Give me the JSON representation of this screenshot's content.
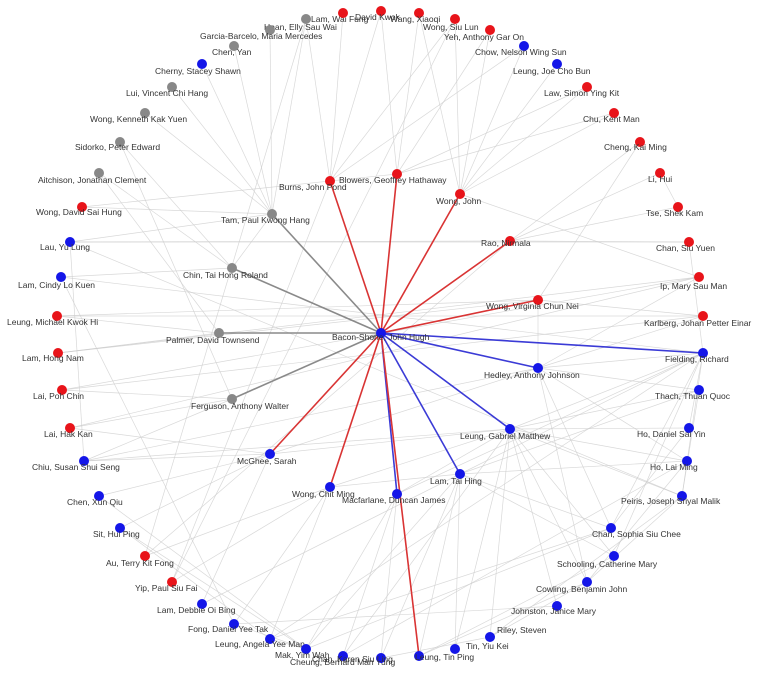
{
  "center": "Bacon-Shone, John Hugh",
  "colors": {
    "red": "#e8141a",
    "blue": "#1416e8",
    "gray": "#888888",
    "edge_red": "#d93434",
    "edge_blue": "#3b3bd6",
    "edge_gray": "#8a8a8a",
    "edge_bg": "#cccccc"
  },
  "nodes": [
    {
      "name": "Bacon-Shone, John Hugh",
      "color": "blue"
    },
    {
      "name": "Blowers, Geoffrey Hathaway",
      "color": "red"
    },
    {
      "name": "Burns, John Pond",
      "color": "red"
    },
    {
      "name": "Wong, John",
      "color": "red"
    },
    {
      "name": "Rao, Nirmala",
      "color": "red"
    },
    {
      "name": "Wong, Virginia Chun Nei",
      "color": "red"
    },
    {
      "name": "Tam, Paul Kwong Hang",
      "color": "gray"
    },
    {
      "name": "Chin, Tai Hong Roland",
      "color": "gray"
    },
    {
      "name": "Palmer, David Townsend",
      "color": "gray"
    },
    {
      "name": "Ferguson, Anthony Walter",
      "color": "gray"
    },
    {
      "name": "Hedley, Anthony Johnson",
      "color": "blue"
    },
    {
      "name": "Leung, Gabriel Matthew",
      "color": "blue"
    },
    {
      "name": "Lam, Tai Hing",
      "color": "blue"
    },
    {
      "name": "McGhee, Sarah",
      "color": "blue"
    },
    {
      "name": "Wong, Chit Ming",
      "color": "blue"
    },
    {
      "name": "Macfarlane, Duncan James",
      "color": "blue"
    },
    {
      "name": "Lam, Wai Fung",
      "color": "gray"
    },
    {
      "name": "Hoan, Elly Sau Wai",
      "color": "red"
    },
    {
      "name": "Garcia-Barcelo, Maria Mercedes",
      "color": "gray"
    },
    {
      "name": "Chen, Yan",
      "color": "gray"
    },
    {
      "name": "Cherny, Stacey Shawn",
      "color": "blue"
    },
    {
      "name": "Lui, Vincent Chi Hang",
      "color": "gray"
    },
    {
      "name": "Wong, Kenneth Kak Yuen",
      "color": "gray"
    },
    {
      "name": "Sidorko, Peter Edward",
      "color": "gray"
    },
    {
      "name": "Aitchison, Jonathan Clement",
      "color": "gray"
    },
    {
      "name": "Wong, David Sai Hung",
      "color": "red"
    },
    {
      "name": "Lau, Yu Lung",
      "color": "blue"
    },
    {
      "name": "Lam, Cindy Lo Kuen",
      "color": "blue"
    },
    {
      "name": "Leung, Michael Kwok Hi",
      "color": "red"
    },
    {
      "name": "Lam, Hong Nam",
      "color": "red"
    },
    {
      "name": "Lai, Poh Chin",
      "color": "red"
    },
    {
      "name": "Lai, Hak Kan",
      "color": "red"
    },
    {
      "name": "Chiu, Susan Shui Seng",
      "color": "blue"
    },
    {
      "name": "Chen, Xun Qiu",
      "color": "blue"
    },
    {
      "name": "Sit, Hui Ping",
      "color": "blue"
    },
    {
      "name": "Au, Terry Kit Fong",
      "color": "red"
    },
    {
      "name": "Yip, Paul Siu Fai",
      "color": "red"
    },
    {
      "name": "Lam, Debbie Oi Bing",
      "color": "blue"
    },
    {
      "name": "Fong, Daniel Yee Tak",
      "color": "blue"
    },
    {
      "name": "Leung, Angela Yee Man",
      "color": "blue"
    },
    {
      "name": "Mak, Yim Wah",
      "color": "blue"
    },
    {
      "name": "Cheung, Bernard Man Yung",
      "color": "blue"
    },
    {
      "name": "Chan, Karen Siu Ling",
      "color": "blue"
    },
    {
      "name": "Leung, Tin Ping",
      "color": "blue"
    },
    {
      "name": "Tin, Yiu Kei",
      "color": "blue"
    },
    {
      "name": "Riley, Steven",
      "color": "blue"
    },
    {
      "name": "Johnston, Janice Mary",
      "color": "blue"
    },
    {
      "name": "Cowling, Benjamin John",
      "color": "blue"
    },
    {
      "name": "Schooling, Catherine Mary",
      "color": "blue"
    },
    {
      "name": "Chan, Sophia Siu Chee",
      "color": "blue"
    },
    {
      "name": "Peiris, Joseph Sriyal Malik",
      "color": "blue"
    },
    {
      "name": "Ho, Lai Ming",
      "color": "blue"
    },
    {
      "name": "Ho, Daniel Sai Yin",
      "color": "blue"
    },
    {
      "name": "Thach, Thuan Quoc",
      "color": "blue"
    },
    {
      "name": "Fielding, Richard",
      "color": "blue"
    },
    {
      "name": "Karlberg, Johan Petter Einar",
      "color": "red"
    },
    {
      "name": "Ip, Mary Sau Man",
      "color": "red"
    },
    {
      "name": "Chan, Siu Yuen",
      "color": "red"
    },
    {
      "name": "Tse, Shek Kam",
      "color": "red"
    },
    {
      "name": "Li, Hui",
      "color": "red"
    },
    {
      "name": "Cheng, Kai Ming",
      "color": "red"
    },
    {
      "name": "Chu, Kent Man",
      "color": "red"
    },
    {
      "name": "Law, Simon Ying Kit",
      "color": "red"
    },
    {
      "name": "Leung, Joe Cho Bun",
      "color": "blue"
    },
    {
      "name": "Chow, Nelson Wing Sun",
      "color": "blue"
    },
    {
      "name": "Yeh, Anthony Gar On",
      "color": "red"
    },
    {
      "name": "Wong, Siu Lun",
      "color": "red"
    },
    {
      "name": "Wang, Xiaoqi",
      "color": "red"
    },
    {
      "name": "David Kwok",
      "color": "red"
    }
  ],
  "highlight_edges": [
    {
      "to": "Blowers, Geoffrey Hathaway",
      "color": "edge_red"
    },
    {
      "to": "Burns, John Pond",
      "color": "edge_red"
    },
    {
      "to": "Wong, John",
      "color": "edge_red"
    },
    {
      "to": "Rao, Nirmala",
      "color": "edge_red"
    },
    {
      "to": "Wong, Virginia Chun Nei",
      "color": "edge_red"
    },
    {
      "to": "Tam, Paul Kwong Hang",
      "color": "edge_gray"
    },
    {
      "to": "Chin, Tai Hong Roland",
      "color": "edge_gray"
    },
    {
      "to": "Palmer, David Townsend",
      "color": "edge_gray"
    },
    {
      "to": "Ferguson, Anthony Walter",
      "color": "edge_gray"
    },
    {
      "to": "Hedley, Anthony Johnson",
      "color": "edge_blue"
    },
    {
      "to": "Leung, Gabriel Matthew",
      "color": "edge_blue"
    },
    {
      "to": "Lam, Tai Hing",
      "color": "edge_blue"
    },
    {
      "to": "McGhee, Sarah",
      "color": "edge_red"
    },
    {
      "to": "Wong, Chit Ming",
      "color": "edge_red"
    },
    {
      "to": "Macfarlane, Duncan James",
      "color": "edge_blue"
    },
    {
      "to": "Fielding, Richard",
      "color": "edge_blue"
    },
    {
      "to": "Leung, Tin Ping",
      "color": "edge_red"
    }
  ],
  "background_edges": [
    [
      "Tam, Paul Kwong Hang",
      "Garcia-Barcelo, Maria Mercedes"
    ],
    [
      "Tam, Paul Kwong Hang",
      "Lui, Vincent Chi Hang"
    ],
    [
      "Tam, Paul Kwong Hang",
      "Wong, Kenneth Kak Yuen"
    ],
    [
      "Tam, Paul Kwong Hang",
      "Chen, Yan"
    ],
    [
      "Tam, Paul Kwong Hang",
      "Cherny, Stacey Shawn"
    ],
    [
      "Tam, Paul Kwong Hang",
      "Wong, David Sai Hung"
    ],
    [
      "Tam, Paul Kwong Hang",
      "Lau, Yu Lung"
    ],
    [
      "Tam, Paul Kwong Hang",
      "Lam, Wai Fung"
    ],
    [
      "Tam, Paul Kwong Hang",
      "Chin, Tai Hong Roland"
    ],
    [
      "Chin, Tai Hong Roland",
      "Sidorko, Peter Edward"
    ],
    [
      "Chin, Tai Hong Roland",
      "Aitchison, Jonathan Clement"
    ],
    [
      "Chin, Tai Hong Roland",
      "Lam, Cindy Lo Kuen"
    ],
    [
      "Palmer, David Townsend",
      "Leung, Michael Kwok Hi"
    ],
    [
      "Palmer, David Townsend",
      "Lam, Hong Nam"
    ],
    [
      "Palmer, David Townsend",
      "Aitchison, Jonathan Clement"
    ],
    [
      "Ferguson, Anthony Walter",
      "Sidorko, Peter Edward"
    ],
    [
      "Ferguson, Anthony Walter",
      "Lai, Poh Chin"
    ],
    [
      "Ferguson, Anthony Walter",
      "Lai, Hak Kan"
    ],
    [
      "Ferguson, Anthony Walter",
      "Chiu, Susan Shui Seng"
    ],
    [
      "McGhee, Sarah",
      "Chiu, Susan Shui Seng"
    ],
    [
      "McGhee, Sarah",
      "Chen, Xun Qiu"
    ],
    [
      "McGhee, Sarah",
      "Sit, Hui Ping"
    ],
    [
      "McGhee, Sarah",
      "Lai, Hak Kan"
    ],
    [
      "McGhee, Sarah",
      "Lam, Debbie Oi Bing"
    ],
    [
      "McGhee, Sarah",
      "Leung, Gabriel Matthew"
    ],
    [
      "McGhee, Sarah",
      "Hedley, Anthony Johnson"
    ],
    [
      "Wong, Chit Ming",
      "Au, Terry Kit Fong"
    ],
    [
      "Wong, Chit Ming",
      "Yip, Paul Siu Fai"
    ],
    [
      "Wong, Chit Ming",
      "Fong, Daniel Yee Tak"
    ],
    [
      "Wong, Chit Ming",
      "Leung, Angela Yee Man"
    ],
    [
      "Wong, Chit Ming",
      "Lam, Tai Hing"
    ],
    [
      "Wong, Chit Ming",
      "Leung, Gabriel Matthew"
    ],
    [
      "Macfarlane, Duncan James",
      "Mak, Yim Wah"
    ],
    [
      "Macfarlane, Duncan James",
      "Cheung, Bernard Man Yung"
    ],
    [
      "Macfarlane, Duncan James",
      "Chan, Karen Siu Ling"
    ],
    [
      "Macfarlane, Duncan James",
      "Leung, Gabriel Matthew"
    ],
    [
      "Macfarlane, Duncan James",
      "Fielding, Richard"
    ],
    [
      "Lam, Tai Hing",
      "Leung, Tin Ping"
    ],
    [
      "Lam, Tai Hing",
      "Tin, Yiu Kei"
    ],
    [
      "Lam, Tai Hing",
      "Chan, Sophia Siu Chee"
    ],
    [
      "Lam, Tai Hing",
      "Schooling, Catherine Mary"
    ],
    [
      "Lam, Tai Hing",
      "Ho, Lai Ming"
    ],
    [
      "Lam, Tai Hing",
      "Thach, Thuan Quoc"
    ],
    [
      "Lam, Tai Hing",
      "Mak, Yim Wah"
    ],
    [
      "Lam, Tai Hing",
      "Lam, Debbie Oi Bing"
    ],
    [
      "Lam, Tai Hing",
      "Chan, Karen Siu Ling"
    ],
    [
      "Lam, Tai Hing",
      "Fielding, Richard"
    ],
    [
      "Leung, Gabriel Matthew",
      "Riley, Steven"
    ],
    [
      "Leung, Gabriel Matthew",
      "Johnston, Janice Mary"
    ],
    [
      "Leung, Gabriel Matthew",
      "Cowling, Benjamin John"
    ],
    [
      "Leung, Gabriel Matthew",
      "Schooling, Catherine Mary"
    ],
    [
      "Leung, Gabriel Matthew",
      "Peiris, Joseph Sriyal Malik"
    ],
    [
      "Leung, Gabriel Matthew",
      "Ho, Daniel Sai Yin"
    ],
    [
      "Leung, Gabriel Matthew",
      "Thach, Thuan Quoc"
    ],
    [
      "Leung, Gabriel Matthew",
      "Fielding, Richard"
    ],
    [
      "Leung, Gabriel Matthew",
      "Ho, Lai Ming"
    ],
    [
      "Leung, Gabriel Matthew",
      "Cheung, Bernard Man Yung"
    ],
    [
      "Leung, Gabriel Matthew",
      "Tin, Yiu Kei"
    ],
    [
      "Leung, Gabriel Matthew",
      "Chiu, Susan Shui Seng"
    ],
    [
      "Hedley, Anthony Johnson",
      "Fielding, Richard"
    ],
    [
      "Hedley, Anthony Johnson",
      "Thach, Thuan Quoc"
    ],
    [
      "Hedley, Anthony Johnson",
      "Ho, Lai Ming"
    ],
    [
      "Hedley, Anthony Johnson",
      "Chan, Sophia Siu Chee"
    ],
    [
      "Hedley, Anthony Johnson",
      "Karlberg, Johan Petter Einar"
    ],
    [
      "Hedley, Anthony Johnson",
      "Ip, Mary Sau Man"
    ],
    [
      "Hedley, Anthony Johnson",
      "Wong, Virginia Chun Nei"
    ],
    [
      "Hedley, Anthony Johnson",
      "Chiu, Susan Shui Seng"
    ],
    [
      "Hedley, Anthony Johnson",
      "Cowling, Benjamin John"
    ],
    [
      "Fielding, Richard",
      "Peiris, Joseph Sriyal Malik"
    ],
    [
      "Fielding, Richard",
      "Ho, Daniel Sai Yin"
    ],
    [
      "Fielding, Richard",
      "Chan, Sophia Siu Chee"
    ],
    [
      "Fielding, Richard",
      "Schooling, Catherine Mary"
    ],
    [
      "Fielding, Richard",
      "Lam, Cindy Lo Kuen"
    ],
    [
      "Fielding, Richard",
      "Leung, Angela Yee Man"
    ],
    [
      "Fielding, Richard",
      "Chan, Siu Yuen"
    ],
    [
      "Thach, Thuan Quoc",
      "Peiris, Joseph Sriyal Malik"
    ],
    [
      "Ho, Daniel Sai Yin",
      "Chan, Sophia Siu Chee"
    ],
    [
      "Ho, Lai Ming",
      "Cowling, Benjamin John"
    ],
    [
      "Peiris, Joseph Sriyal Malik",
      "Riley, Steven"
    ],
    [
      "Peiris, Joseph Sriyal Malik",
      "Cowling, Benjamin John"
    ],
    [
      "Johnston, Janice Mary",
      "Fong, Daniel Yee Tak"
    ],
    [
      "Riley, Steven",
      "Cowling, Benjamin John"
    ],
    [
      "Schooling, Catherine Mary",
      "Leung, Tin Ping"
    ],
    [
      "Chan, Sophia Siu Chee",
      "Leung, Angela Yee Man"
    ],
    [
      "Chan, Sophia Siu Chee",
      "Mak, Yim Wah"
    ],
    [
      "Lam, Cindy Lo Kuen",
      "Fong, Daniel Yee Tak"
    ],
    [
      "Rao, Nirmala",
      "Lau, Yu Lung"
    ],
    [
      "Rao, Nirmala",
      "Chan, Siu Yuen"
    ],
    [
      "Rao, Nirmala",
      "Tse, Shek Kam"
    ],
    [
      "Rao, Nirmala",
      "Li, Hui"
    ],
    [
      "Rao, Nirmala",
      "Cheng, Kai Ming"
    ],
    [
      "Rao, Nirmala",
      "Au, Terry Kit Fong"
    ],
    [
      "Wong, John",
      "Chu, Kent Man"
    ],
    [
      "Wong, John",
      "Law, Simon Ying Kit"
    ],
    [
      "Wong, John",
      "Leung, Joe Cho Bun"
    ],
    [
      "Wong, John",
      "Chow, Nelson Wing Sun"
    ],
    [
      "Wong, John",
      "Yeh, Anthony Gar On"
    ],
    [
      "Wong, John",
      "Wong, Siu Lun"
    ],
    [
      "Wong, John",
      "Wang, Xiaoqi"
    ],
    [
      "Wong, John",
      "Ip, Mary Sau Man"
    ],
    [
      "Burns, John Pond",
      "Wong, Siu Lun"
    ],
    [
      "Burns, John Pond",
      "Hoan, Elly Sau Wai"
    ],
    [
      "Burns, John Pond",
      "Lam, Wai Fung"
    ],
    [
      "Burns, John Pond",
      "Chow, Nelson Wing Sun"
    ],
    [
      "Burns, John Pond",
      "David Kwok"
    ],
    [
      "Burns, John Pond",
      "Yip, Paul Siu Fai"
    ],
    [
      "Blowers, Geoffrey Hathaway",
      "Yeh, Anthony Gar On"
    ],
    [
      "Blowers, Geoffrey Hathaway",
      "Wang, Xiaoqi"
    ],
    [
      "Blowers, Geoffrey Hathaway",
      "David Kwok"
    ],
    [
      "Blowers, Geoffrey Hathaway",
      "Law, Simon Ying Kit"
    ],
    [
      "Blowers, Geoffrey Hathaway",
      "Chu, Kent Man"
    ],
    [
      "Blowers, Geoffrey Hathaway",
      "Wong, David Sai Hung"
    ],
    [
      "Wong, Virginia Chun Nei",
      "Leung, Michael Kwok Hi"
    ],
    [
      "Wong, Virginia Chun Nei",
      "Lam, Hong Nam"
    ],
    [
      "Wong, Virginia Chun Nei",
      "Karlberg, Johan Petter Einar"
    ],
    [
      "Wong, Virginia Chun Nei",
      "Cheng, Kai Ming"
    ],
    [
      "Karlberg, Johan Petter Einar",
      "Lai, Poh Chin"
    ],
    [
      "Karlberg, Johan Petter Einar",
      "Leung, Michael Kwok Hi"
    ],
    [
      "Ip, Mary Sau Man",
      "Lam, Hong Nam"
    ],
    [
      "Ip, Mary Sau Man",
      "Lai, Hak Kan"
    ],
    [
      "Chan, Siu Yuen",
      "Lau, Yu Lung"
    ],
    [
      "Tse, Shek Kam",
      "Li, Hui"
    ],
    [
      "Yip, Paul Siu Fai",
      "Wong, Siu Lun"
    ],
    [
      "Au, Terry Kit Fong",
      "Lam, Wai Fung"
    ],
    [
      "Lai, Poh Chin",
      "Ip, Mary Sau Man"
    ],
    [
      "Lau, Yu Lung",
      "Chiu, Susan Shui Seng"
    ],
    [
      "Lau, Yu Lung",
      "Peiris, Joseph Sriyal Malik"
    ],
    [
      "Chen, Xun Qiu",
      "Mak, Yim Wah"
    ],
    [
      "Sit, Hui Ping",
      "Mak, Yim Wah"
    ],
    [
      "Sit, Hui Ping",
      "Leung, Angela Yee Man"
    ],
    [
      "Leung, Angela Yee Man",
      "Mak, Yim Wah"
    ],
    [
      "Fong, Daniel Yee Tak",
      "Mak, Yim Wah"
    ],
    [
      "Cheung, Bernard Man Yung",
      "Ho, Lai Ming"
    ],
    [
      "Chan, Karen Siu Ling",
      "Riley, Steven"
    ],
    [
      "Leung, Tin Ping",
      "Cowling, Benjamin John"
    ]
  ]
}
